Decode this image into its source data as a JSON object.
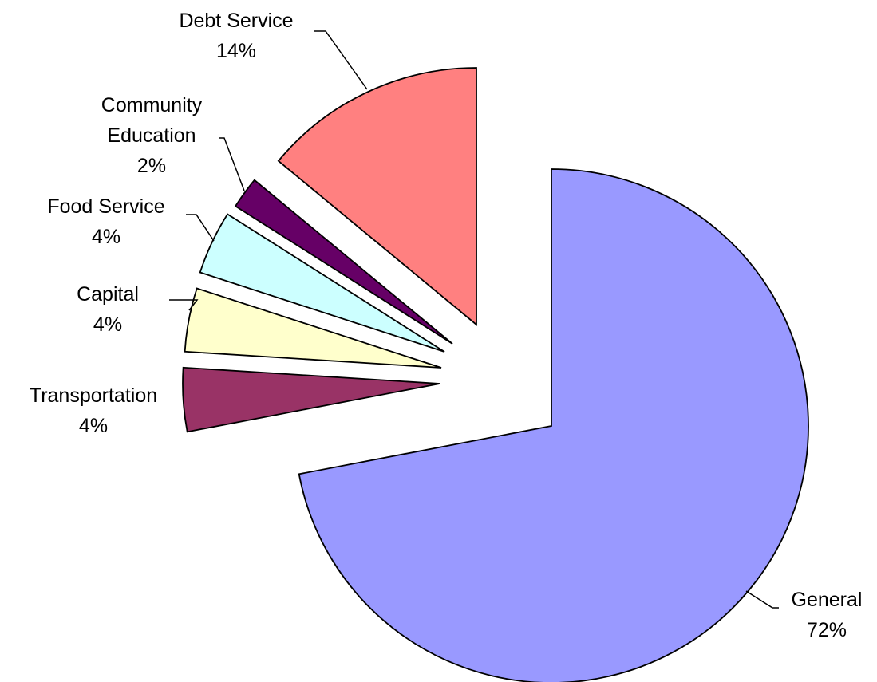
{
  "chart_data": {
    "type": "pie",
    "title": "",
    "legend": "none",
    "slices": [
      {
        "label": "General",
        "value": 72,
        "value_label": "72%",
        "color": "#9999FF"
      },
      {
        "label": "Transportation",
        "value": 4,
        "value_label": "4%",
        "color": "#993366"
      },
      {
        "label": "Capital",
        "value": 4,
        "value_label": "4%",
        "color": "#FFFFCC"
      },
      {
        "label": "Food Service",
        "value": 4,
        "value_label": "4%",
        "color": "#CCFFFF"
      },
      {
        "label": "Community Education",
        "value": 2,
        "value_label": "2%",
        "color": "#660066"
      },
      {
        "label": "Debt Service",
        "value": 14,
        "value_label": "14%",
        "color": "#FF8080"
      }
    ]
  }
}
